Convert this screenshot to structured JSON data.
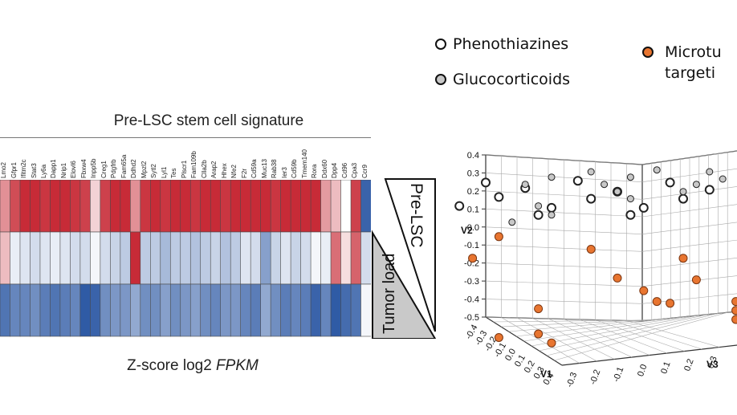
{
  "legend": [
    {
      "label": "Phenothiazines",
      "color": "#ffffff"
    },
    {
      "label": "Glucocorticoids",
      "color": "#c8c8c8"
    },
    {
      "label": "Microtu",
      "label2": "targeti",
      "color": "#e87530"
    }
  ],
  "chart_data": [
    {
      "type": "heatmap",
      "title": "Pre-LSC stem cell signature",
      "caption_prefix": "Z-score log2 ",
      "caption_unit": "FPKM",
      "genes": [
        "Lmo2",
        "Gfpr1",
        "Ifitm2c",
        "Stat3",
        "Ly6a",
        "Dapp1",
        "Nrip1",
        "Elovl6",
        "Fbxw4",
        "Inpp5b",
        "Creg1",
        "Pdgfrb",
        "Fam65a",
        "Ddhd2",
        "Mpzl2",
        "Sytl2",
        "Lyl1",
        "Tes",
        "Plscr1",
        "Fam109b",
        "Clla2b",
        "Arap2",
        "Hhex",
        "Nfe2",
        "F2r",
        "Cd59a",
        "Muc13",
        "Rab38",
        "Ier3",
        "Cd59b",
        "Tmem140",
        "Rora",
        "Ddx60",
        "Dpp4",
        "Cd96",
        "Cpa3",
        "Ccr9"
      ],
      "rows": [
        "Pre-LSC",
        "",
        "Tumor load"
      ],
      "values": [
        [
          1.0,
          1.6,
          1.9,
          1.9,
          1.8,
          1.9,
          1.9,
          1.8,
          1.7,
          0.4,
          1.7,
          1.9,
          1.9,
          1.0,
          1.8,
          1.9,
          1.8,
          1.9,
          1.9,
          1.8,
          1.9,
          1.9,
          1.8,
          1.9,
          1.9,
          1.9,
          1.9,
          1.8,
          1.9,
          1.9,
          1.9,
          1.9,
          0.9,
          0.6,
          0.0,
          1.7,
          -1.8
        ],
        [
          0.6,
          -0.2,
          -0.3,
          -0.4,
          -0.3,
          -0.2,
          -0.3,
          -0.4,
          -0.4,
          -0.1,
          -0.4,
          -0.5,
          -0.6,
          1.9,
          -0.6,
          -0.6,
          -0.8,
          -0.6,
          -0.6,
          -0.7,
          -0.6,
          -0.5,
          -0.7,
          -0.6,
          -0.3,
          -0.4,
          -1.1,
          -0.5,
          -0.3,
          -0.5,
          -0.4,
          -0.1,
          -0.2,
          1.3,
          0.3,
          1.4,
          -0.4
        ],
        [
          -1.6,
          -1.4,
          -1.4,
          -1.3,
          -1.5,
          -1.6,
          -1.5,
          -1.4,
          -1.9,
          -1.8,
          -1.3,
          -1.2,
          -1.2,
          -1.0,
          -1.3,
          -1.3,
          -1.1,
          -1.3,
          -1.2,
          -1.1,
          -1.3,
          -1.4,
          -1.2,
          -1.2,
          -1.4,
          -1.5,
          -1.0,
          -1.3,
          -1.5,
          -1.4,
          -1.5,
          -1.8,
          -1.4,
          -1.9,
          -1.7,
          -1.6,
          -0.1
        ]
      ]
    },
    {
      "type": "scatter",
      "xlabel": "V1",
      "ylabel": "V2",
      "zlabel": "V3",
      "v2_range": [
        -0.5,
        0.4
      ],
      "v2_ticks": [
        "0.4",
        "0.3",
        "0.2",
        "0.1",
        "0.0",
        "-0.1",
        "-0.2",
        "-0.3",
        "-0.4",
        "-0.5"
      ],
      "v1_ticks": [
        "-0.4",
        "-0.3",
        "-0.2",
        "-0.1",
        "0.0",
        "0.1",
        "0.2",
        "0.3",
        "0.4"
      ],
      "v3_ticks": [
        "-0.3",
        "-0.2",
        "-0.1",
        "0.0",
        "0.1",
        "0.2",
        "0.3"
      ],
      "series": [
        {
          "color": "#ffffff",
          "points": [
            [
              0.0,
              0.3
            ],
            [
              0.35,
              0.31
            ],
            [
              0.7,
              0.3
            ],
            [
              -0.2,
              0.26
            ],
            [
              0.15,
              0.27
            ],
            [
              0.5,
              0.25
            ],
            [
              0.85,
              0.26
            ],
            [
              -0.35,
              0.21
            ],
            [
              0.05,
              0.22
            ],
            [
              0.4,
              0.21
            ],
            [
              0.75,
              0.21
            ],
            [
              -0.1,
              0.17
            ],
            [
              0.25,
              0.16
            ],
            [
              0.6,
              0.16
            ],
            [
              0.2,
              0.12
            ],
            [
              0.55,
              0.12
            ]
          ]
        },
        {
          "color": "#c8c8c8",
          "points": [
            [
              0.4,
              0.36
            ],
            [
              0.65,
              0.37
            ],
            [
              0.85,
              0.36
            ],
            [
              0.25,
              0.33
            ],
            [
              0.55,
              0.33
            ],
            [
              0.9,
              0.32
            ],
            [
              0.15,
              0.29
            ],
            [
              0.45,
              0.29
            ],
            [
              0.8,
              0.29
            ],
            [
              0.5,
              0.25
            ],
            [
              0.75,
              0.25
            ],
            [
              0.55,
              0.21
            ],
            [
              0.2,
              0.17
            ],
            [
              0.25,
              0.12
            ],
            [
              0.1,
              0.08
            ]
          ]
        },
        {
          "color": "#e87530",
          "points": [
            [
              -0.3,
              0.17
            ],
            [
              0.05,
              0.0
            ],
            [
              0.4,
              -0.07
            ],
            [
              -0.05,
              -0.12
            ],
            [
              0.75,
              -0.12
            ],
            [
              0.5,
              -0.23
            ],
            [
              0.8,
              -0.24
            ],
            [
              0.6,
              -0.3
            ],
            [
              0.65,
              -0.36
            ],
            [
              0.95,
              -0.36
            ],
            [
              0.2,
              -0.4
            ],
            [
              0.7,
              -0.37
            ],
            [
              0.95,
              -0.41
            ],
            [
              0.95,
              -0.46
            ],
            [
              0.2,
              -0.54
            ],
            [
              0.05,
              -0.56
            ],
            [
              0.25,
              -0.59
            ]
          ]
        }
      ]
    }
  ]
}
